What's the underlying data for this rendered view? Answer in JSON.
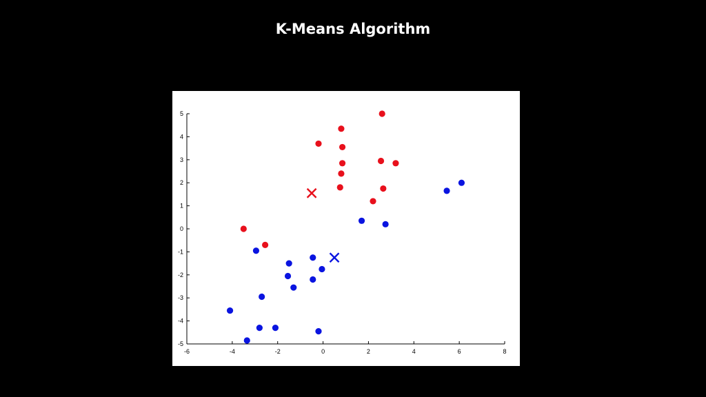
{
  "slide": {
    "title": "K-Means Algorithm",
    "background_color": "#000000",
    "title_color": "#ffffff"
  },
  "chart_data": {
    "type": "scatter",
    "title": "",
    "xlabel": "",
    "ylabel": "",
    "xlim": [
      -6,
      8
    ],
    "ylim": [
      -5,
      5
    ],
    "xticks": [
      "-6",
      "-4",
      "-2",
      "0",
      "2",
      "4",
      "6",
      "8"
    ],
    "yticks": [
      "-5",
      "-4",
      "-3",
      "-2",
      "-1",
      "0",
      "1",
      "2",
      "3",
      "4",
      "5"
    ],
    "grid": false,
    "series": [
      {
        "color": "#e8101c",
        "marker": "circle",
        "points": [
          [
            2.6,
            5.0
          ],
          [
            0.8,
            4.35
          ],
          [
            -0.2,
            3.7
          ],
          [
            0.85,
            3.55
          ],
          [
            0.85,
            2.85
          ],
          [
            2.55,
            2.95
          ],
          [
            3.2,
            2.85
          ],
          [
            0.8,
            2.4
          ],
          [
            0.75,
            1.8
          ],
          [
            2.65,
            1.75
          ],
          [
            2.2,
            1.2
          ],
          [
            -3.5,
            0.0
          ],
          [
            -2.55,
            -0.7
          ]
        ]
      },
      {
        "color": "#0a14e0",
        "marker": "circle",
        "points": [
          [
            6.1,
            2.0
          ],
          [
            5.45,
            1.65
          ],
          [
            1.7,
            0.35
          ],
          [
            2.75,
            0.2
          ],
          [
            -2.95,
            -0.95
          ],
          [
            -0.45,
            -1.25
          ],
          [
            -1.5,
            -1.5
          ],
          [
            -0.05,
            -1.75
          ],
          [
            -1.55,
            -2.05
          ],
          [
            -0.45,
            -2.2
          ],
          [
            -1.3,
            -2.55
          ],
          [
            -2.7,
            -2.95
          ],
          [
            -4.1,
            -3.55
          ],
          [
            -2.8,
            -4.3
          ],
          [
            -2.1,
            -4.3
          ],
          [
            -0.2,
            -4.45
          ],
          [
            -3.35,
            -4.85
          ]
        ]
      }
    ],
    "centroids": [
      {
        "color": "#e8101c",
        "marker": "x",
        "point": [
          -0.5,
          1.55
        ]
      },
      {
        "color": "#0a14e0",
        "marker": "x",
        "point": [
          0.5,
          -1.25
        ]
      }
    ]
  }
}
